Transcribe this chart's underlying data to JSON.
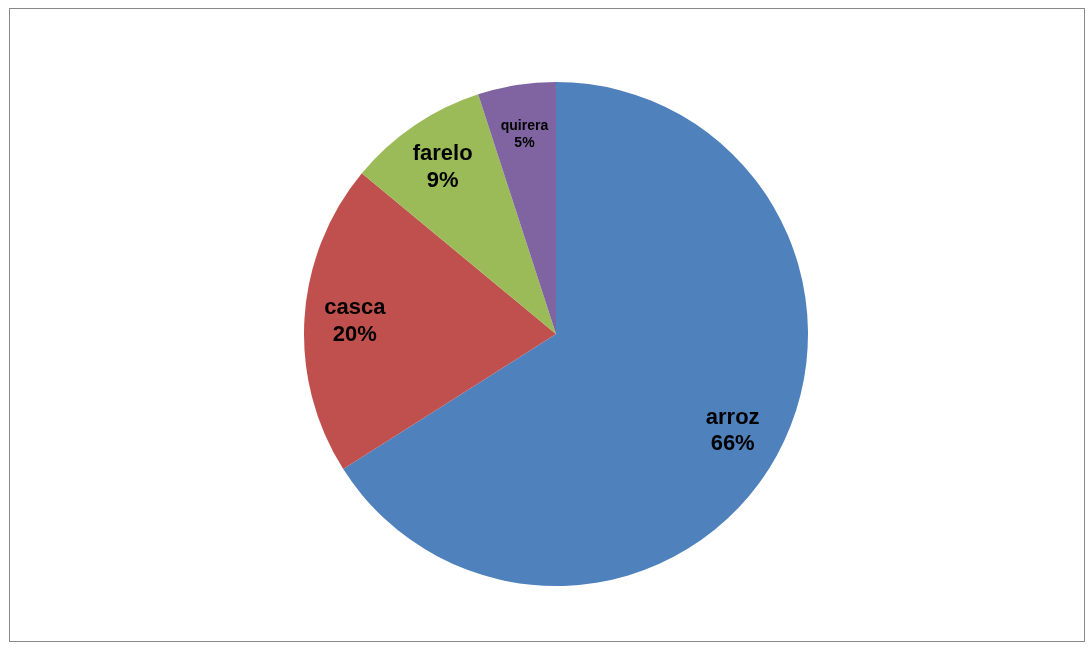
{
  "chart_data": {
    "type": "pie",
    "categories": [
      "arroz",
      "casca",
      "farelo",
      "quirera"
    ],
    "values": [
      66,
      20,
      9,
      5
    ],
    "colors": [
      "#4f81bd",
      "#c0504d",
      "#9bbb59",
      "#8064a2"
    ],
    "value_labels": [
      "66%",
      "20%",
      "9%",
      "5%"
    ],
    "legend": false
  }
}
